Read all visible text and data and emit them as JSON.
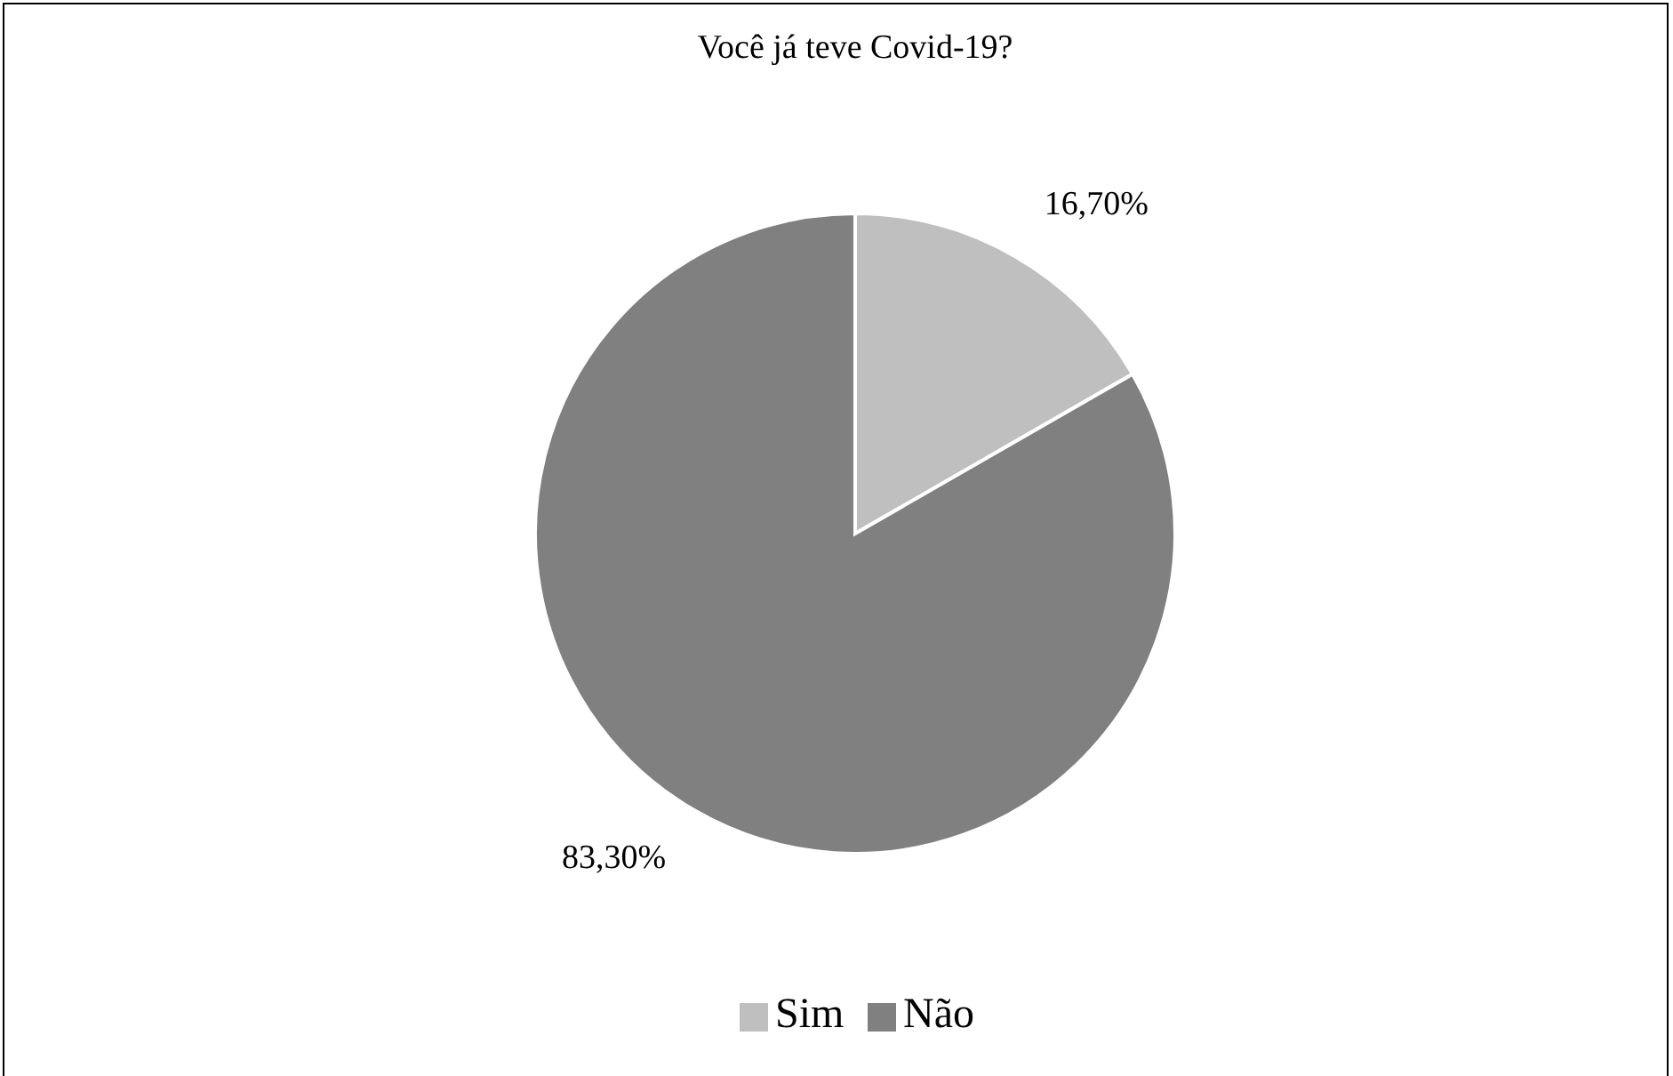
{
  "chart_data": {
    "type": "pie",
    "title": "Você já teve Covid-19?",
    "categories": [
      "Sim",
      "Não"
    ],
    "values": [
      16.7,
      83.3
    ],
    "colors": [
      "#bfbfbf",
      "#808080"
    ],
    "value_labels": [
      "16,70%",
      "83,30%"
    ],
    "legend": "bottom"
  }
}
